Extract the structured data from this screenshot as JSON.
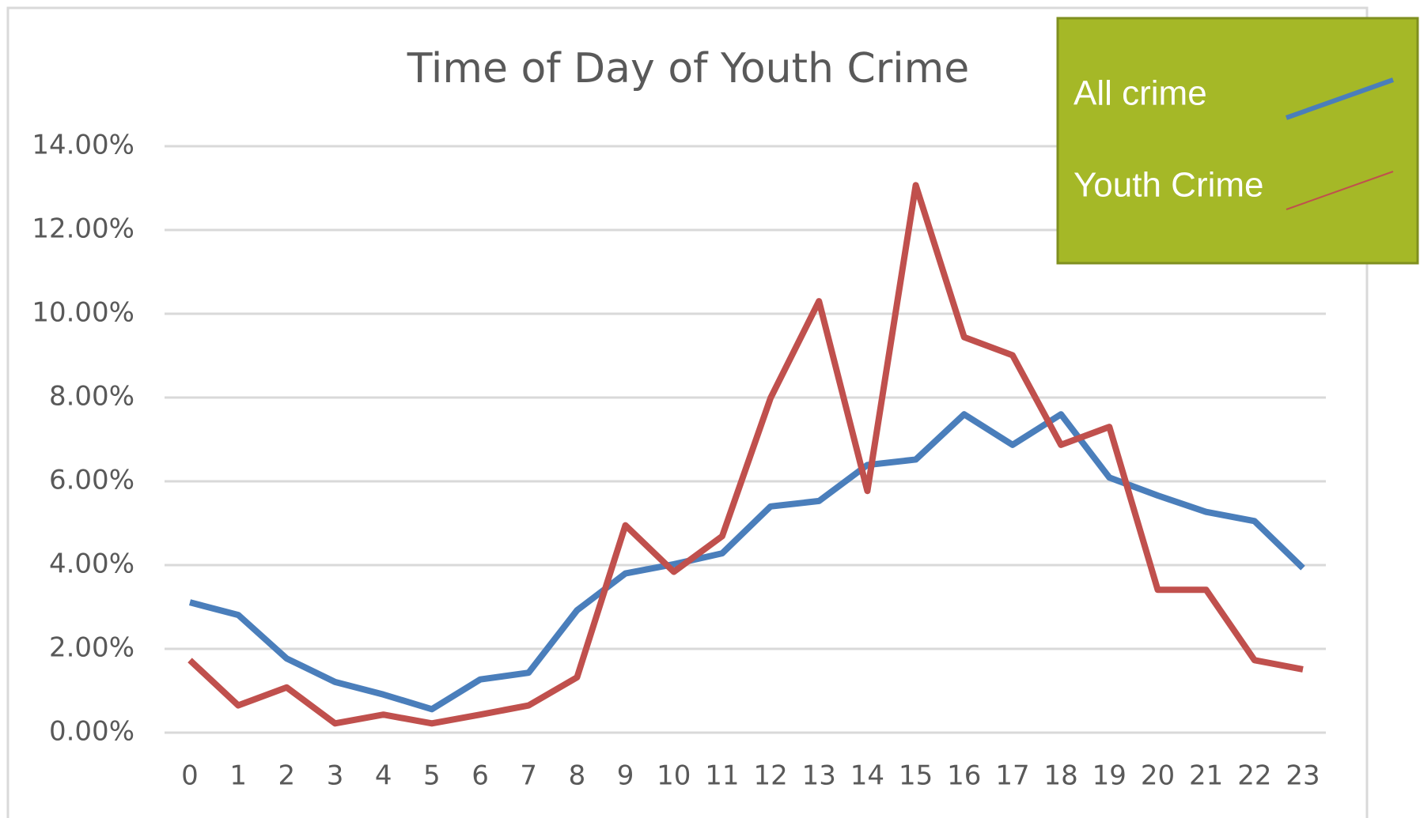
{
  "chart_data": {
    "type": "line",
    "title": "Time of Day of Youth Crime",
    "categories": [
      "0",
      "1",
      "2",
      "3",
      "4",
      "5",
      "6",
      "7",
      "8",
      "9",
      "10",
      "11",
      "12",
      "13",
      "14",
      "15",
      "16",
      "17",
      "18",
      "19",
      "20",
      "21",
      "22",
      "23"
    ],
    "series": [
      {
        "name": "All crime",
        "color": "#4a7ebb",
        "values": [
          3.11,
          2.81,
          1.77,
          1.21,
          0.91,
          0.56,
          1.27,
          1.43,
          2.92,
          3.8,
          4.02,
          4.28,
          5.4,
          5.53,
          6.39,
          6.52,
          7.6,
          6.87,
          7.6,
          6.09,
          5.66,
          5.27,
          5.05,
          3.93
        ]
      },
      {
        "name": "Youth Crime",
        "color": "#c0504d",
        "values": [
          1.73,
          0.65,
          1.08,
          0.22,
          0.43,
          0.22,
          0.43,
          0.65,
          1.32,
          4.95,
          3.84,
          4.69,
          7.99,
          10.3,
          5.77,
          13.07,
          9.44,
          9.01,
          6.87,
          7.3,
          3.41,
          3.41,
          1.73,
          1.51
        ]
      }
    ],
    "ylim": [
      0,
      14
    ],
    "yticks": [
      {
        "value": 0,
        "label": "0.00%"
      },
      {
        "value": 2,
        "label": "2.00%"
      },
      {
        "value": 4,
        "label": "4.00%"
      },
      {
        "value": 6,
        "label": "6.00%"
      },
      {
        "value": 8,
        "label": "8.00%"
      },
      {
        "value": 10,
        "label": "10.00%"
      },
      {
        "value": 12,
        "label": "12.00%"
      },
      {
        "value": 14,
        "label": "14.00%"
      }
    ],
    "grid": true,
    "legend": "top-right"
  }
}
